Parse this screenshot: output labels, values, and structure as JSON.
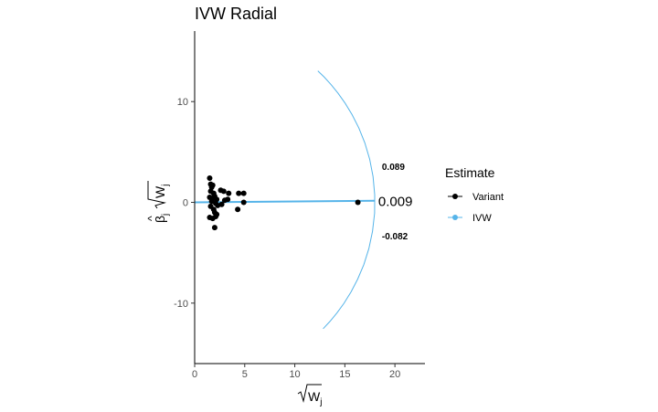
{
  "chart_data": {
    "type": "scatter",
    "title": "IVW Radial",
    "xlabel": "√Wj",
    "ylabel": "β̂j√Wj",
    "xlim": [
      0,
      23
    ],
    "ylim": [
      -16,
      17
    ],
    "x_ticks": [
      0,
      5,
      10,
      15,
      20
    ],
    "y_ticks": [
      -10,
      0,
      10
    ],
    "grid": false,
    "legend": {
      "title": "Estimate",
      "position": "right",
      "entries": [
        {
          "label": "Variant",
          "color": "#000000"
        },
        {
          "label": "IVW",
          "color": "#56B4E9"
        }
      ]
    },
    "series": [
      {
        "name": "Variant",
        "points": [
          {
            "x": 1.5,
            "y": 2.4
          },
          {
            "x": 1.6,
            "y": 1.8
          },
          {
            "x": 1.7,
            "y": 1.5
          },
          {
            "x": 1.8,
            "y": 1.7
          },
          {
            "x": 1.6,
            "y": 1.1
          },
          {
            "x": 1.9,
            "y": 0.9
          },
          {
            "x": 1.5,
            "y": 0.5
          },
          {
            "x": 1.8,
            "y": 0.4
          },
          {
            "x": 2.0,
            "y": 0.6
          },
          {
            "x": 2.2,
            "y": 0.3
          },
          {
            "x": 1.7,
            "y": 0.1
          },
          {
            "x": 2.1,
            "y": -0.1
          },
          {
            "x": 1.6,
            "y": -0.4
          },
          {
            "x": 2.3,
            "y": -0.3
          },
          {
            "x": 1.9,
            "y": -0.7
          },
          {
            "x": 2.0,
            "y": -1.0
          },
          {
            "x": 1.5,
            "y": -1.5
          },
          {
            "x": 1.8,
            "y": -1.6
          },
          {
            "x": 2.1,
            "y": -1.4
          },
          {
            "x": 2.2,
            "y": -1.2
          },
          {
            "x": 2.0,
            "y": -2.5
          },
          {
            "x": 2.6,
            "y": 1.2
          },
          {
            "x": 2.9,
            "y": 1.1
          },
          {
            "x": 3.4,
            "y": 0.9
          },
          {
            "x": 2.7,
            "y": -0.2
          },
          {
            "x": 3.0,
            "y": 0.2
          },
          {
            "x": 3.3,
            "y": 0.3
          },
          {
            "x": 4.4,
            "y": 0.9
          },
          {
            "x": 4.9,
            "y": 0.9
          },
          {
            "x": 4.9,
            "y": 0.0
          },
          {
            "x": 4.3,
            "y": -0.7
          },
          {
            "x": 16.3,
            "y": 0.0
          }
        ]
      },
      {
        "name": "IVW",
        "line": {
          "x0": 0,
          "y0": 0,
          "x1": 18,
          "y1": 0.16
        }
      }
    ],
    "annotations": [
      {
        "text": "0.089",
        "x": 18.7,
        "y": 3.5
      },
      {
        "text": "0.009",
        "x": 18.7,
        "y": 0.1
      },
      {
        "text": "-0.082",
        "x": 18.7,
        "y": -3.4
      }
    ],
    "ci_arc": {
      "center_x": 0,
      "center_y": 0,
      "radius": 18,
      "theta_low": -0.082,
      "theta_high": 0.089
    }
  }
}
